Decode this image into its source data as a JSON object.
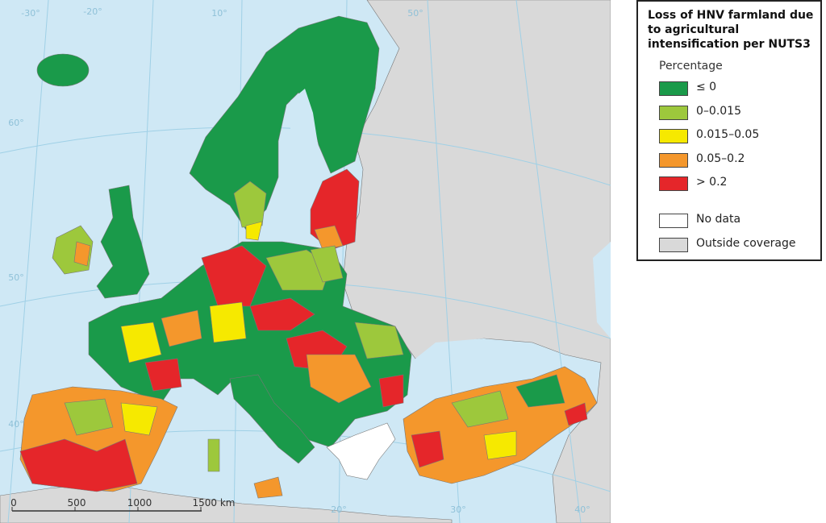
{
  "legend": {
    "title": "Loss of HNV farmland due to agricultural intensification per NUTS3",
    "subtitle": "Percentage",
    "items": [
      {
        "label": "≤ 0",
        "color": "#1a9a4a"
      },
      {
        "label": "0–0.015",
        "color": "#9dc83c"
      },
      {
        "label": "0.015–0.05",
        "color": "#f6e900"
      },
      {
        "label": "0.05–0.2",
        "color": "#f4972c"
      },
      {
        "label": "> 0.2",
        "color": "#e5262a"
      }
    ],
    "extra_items": [
      {
        "label": "No data",
        "color": "#ffffff"
      },
      {
        "label": "Outside coverage",
        "color": "#d9d9d9"
      }
    ]
  },
  "scale_bar": {
    "labels": [
      "0",
      "500",
      "1000",
      "1500 km"
    ]
  },
  "graticule_labels": [
    "-30°",
    "-20°",
    "10°",
    "50°",
    "60°",
    "50°",
    "40°",
    "20°",
    "30°",
    "40°"
  ]
}
